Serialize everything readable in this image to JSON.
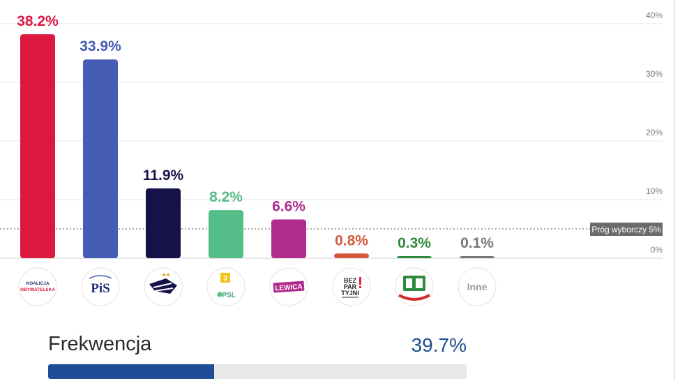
{
  "chart_data": {
    "type": "bar",
    "ylim": [
      0,
      40
    ],
    "yticks": [
      0,
      10,
      20,
      30,
      40
    ],
    "ytick_labels": [
      "0%",
      "10%",
      "20%",
      "30%",
      "40%"
    ],
    "grid": true,
    "threshold": {
      "value": 5,
      "label": "Próg wyborczy 5%"
    },
    "bars": [
      {
        "value": 38.2,
        "label": "38.2%",
        "color": "#dc1740",
        "logo": "koalicja-obywatelska-logo",
        "logo_text": [
          "KOALICJA",
          "OBYWATELSKA"
        ]
      },
      {
        "value": 33.9,
        "label": "33.9%",
        "color": "#465cb5",
        "logo": "pis-logo",
        "logo_text": [
          "PiS"
        ]
      },
      {
        "value": 11.9,
        "label": "11.9%",
        "color": "#15124a",
        "logo": "konfederacja-logo",
        "logo_text": []
      },
      {
        "value": 8.2,
        "label": "8.2%",
        "color": "#55bd88",
        "logo": "trzecia-droga-psl-logo",
        "logo_text": [
          "PSL"
        ]
      },
      {
        "value": 6.6,
        "label": "6.6%",
        "color": "#b12b8d",
        "logo": "lewica-logo",
        "logo_text": [
          "LEWICA"
        ]
      },
      {
        "value": 0.8,
        "label": "0.8%",
        "color": "#d6583a",
        "logo": "bezpartyjni-logo",
        "logo_text": [
          "BEZ",
          "PAR",
          "TYJNI"
        ]
      },
      {
        "value": 0.3,
        "label": "0.3%",
        "color": "#2f8a3c",
        "logo": "green-party-logo",
        "logo_text": []
      },
      {
        "value": 0.1,
        "label": "0.1%",
        "color": "#777777",
        "logo": "inne-logo",
        "logo_text": [
          "Inne"
        ]
      }
    ]
  },
  "turnout": {
    "label": "Frekwencja",
    "value_label": "39.7%",
    "value": 39.7,
    "color": "#1f4e96"
  }
}
